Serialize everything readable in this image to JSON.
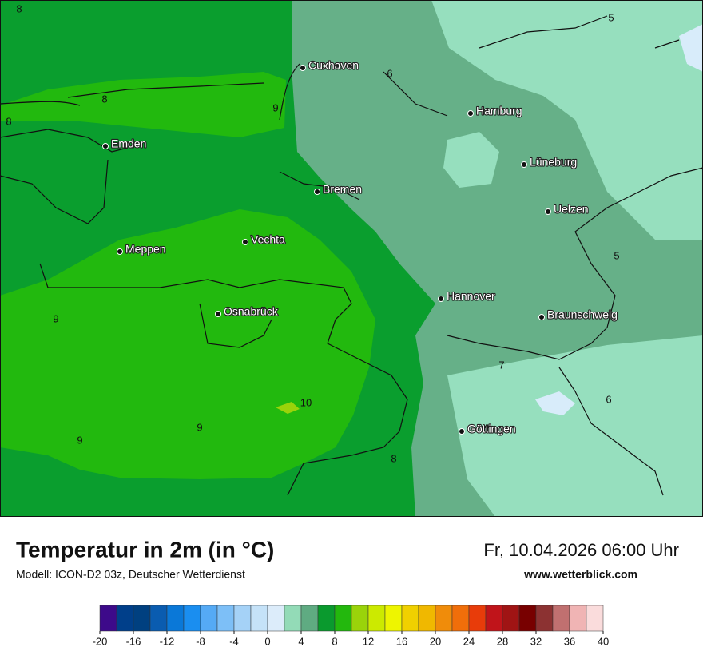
{
  "map": {
    "cities": [
      "Cuxhaven",
      "Hamburg",
      "Emden",
      "Lüneburg",
      "Bremen",
      "Uelzen",
      "Vechta",
      "Meppen",
      "Hannover",
      "Osnabrück",
      "Braunschweig",
      "Göttingen"
    ],
    "contour_labels": [
      8,
      8,
      8,
      9,
      6,
      5,
      5,
      9,
      10,
      9,
      9,
      7,
      6,
      8
    ]
  },
  "footer": {
    "title": "Temperatur in 2m (in °C)",
    "model": "Modell: ICON-D2 03z, Deutscher Wetterdienst",
    "datetime": "Fr, 10.04.2026 06:00 Uhr",
    "website": "www.wetterblick.com"
  },
  "colorbar": {
    "ticks": [
      -20,
      -16,
      -12,
      -8,
      -4,
      0,
      4,
      8,
      12,
      16,
      20,
      24,
      28,
      32,
      36,
      40
    ],
    "colors": [
      "#3d0a8a",
      "#003f8a",
      "#004080",
      "#0a5cb0",
      "#0a78d8",
      "#1a8ef0",
      "#55aaf5",
      "#7dbff7",
      "#a5d2f7",
      "#c5e2f8",
      "#dcecfa",
      "#93dbb7",
      "#5fab82",
      "#0a9a2e",
      "#23b80d",
      "#9ad30a",
      "#ccea00",
      "#eef500",
      "#f0d000",
      "#f0b800",
      "#f08c0a",
      "#f06e0a",
      "#e83c0a",
      "#c0141a",
      "#a01414",
      "#780000",
      "#8c3232",
      "#c07070",
      "#f0b4b4",
      "#fadcdc"
    ]
  }
}
